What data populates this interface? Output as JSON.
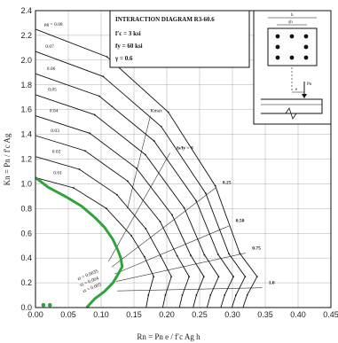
{
  "chart_data": {
    "type": "line",
    "title": "INTERACTION DIAGRAM R3-60.6",
    "info_lines": [
      "f′c = 3 ksi",
      "fy = 60 ksi",
      "γ = 0.6"
    ],
    "xlabel": "Rn = Pn e / f′c Ag h",
    "ylabel": "Kn = Pn / f′c Ag",
    "xlim": [
      0,
      0.45
    ],
    "ylim": [
      0,
      2.4
    ],
    "x_ticks": [
      "0.00",
      "0.05",
      "0.10",
      "0.15",
      "0.20",
      "0.25",
      "0.30",
      "0.35",
      "0.40",
      "0.45"
    ],
    "y_ticks": [
      "0.0",
      "0.2",
      "0.4",
      "0.6",
      "0.8",
      "1.0",
      "1.2",
      "1.4",
      "1.6",
      "1.8",
      "2.0",
      "2.2",
      "2.4"
    ],
    "grid": true,
    "curves": [
      {
        "name": "ρg = 0.08",
        "k0": 2.25,
        "rmax": 0.375
      },
      {
        "name": "0.07",
        "k0": 2.07,
        "rmax": 0.355
      },
      {
        "name": "0.06",
        "k0": 1.89,
        "rmax": 0.335
      },
      {
        "name": "0.05",
        "k0": 1.72,
        "rmax": 0.31
      },
      {
        "name": "0.04",
        "k0": 1.55,
        "rmax": 0.285
      },
      {
        "name": "0.03",
        "k0": 1.39,
        "rmax": 0.26
      },
      {
        "name": "0.02",
        "k0": 1.22,
        "rmax": 0.23
      },
      {
        "name": "0.01",
        "k0": 1.05,
        "rmax": 0.2
      }
    ],
    "highlight": {
      "points": [
        [
          0.0,
          1.05
        ],
        [
          0.02,
          0.97
        ],
        [
          0.045,
          0.9
        ],
        [
          0.07,
          0.82
        ],
        [
          0.09,
          0.73
        ],
        [
          0.105,
          0.65
        ],
        [
          0.118,
          0.55
        ],
        [
          0.125,
          0.47
        ],
        [
          0.13,
          0.4
        ],
        [
          0.132,
          0.33
        ],
        [
          0.126,
          0.27
        ],
        [
          0.118,
          0.2
        ],
        [
          0.105,
          0.13
        ],
        [
          0.09,
          0.07
        ],
        [
          0.078,
          0.0
        ]
      ],
      "color": "#2fa33c"
    },
    "green_dots": [
      [
        0.012,
        0.02
      ],
      [
        0.022,
        0.02
      ]
    ],
    "radial_lines": [
      {
        "label": "fs/fy = 0",
        "lab_x": 0.215,
        "lab_y": 1.28,
        "angle": 57
      },
      {
        "label": "0.25",
        "lab_x": 0.285,
        "lab_y": 1.0,
        "angle": 45
      },
      {
        "label": "0.50",
        "lab_x": 0.305,
        "lab_y": 0.69,
        "angle": 33
      },
      {
        "label": "0.75",
        "lab_x": 0.33,
        "lab_y": 0.47,
        "angle": 22
      },
      {
        "label": "1.0",
        "lab_x": 0.355,
        "lab_y": 0.19,
        "angle": 9
      }
    ],
    "kmax_label": "Kmax",
    "strain_labels": [
      "εt = 0.0035",
      "εt = 0.004",
      "εt = 0.005"
    ],
    "colors": {
      "lines": "#111111",
      "grid": "#9a9a9a",
      "highlight": "#2fa33c"
    }
  },
  "inset": {
    "width_label": "h",
    "inner_label": "γh",
    "force_label": "Pn",
    "ecc_label": "e"
  }
}
